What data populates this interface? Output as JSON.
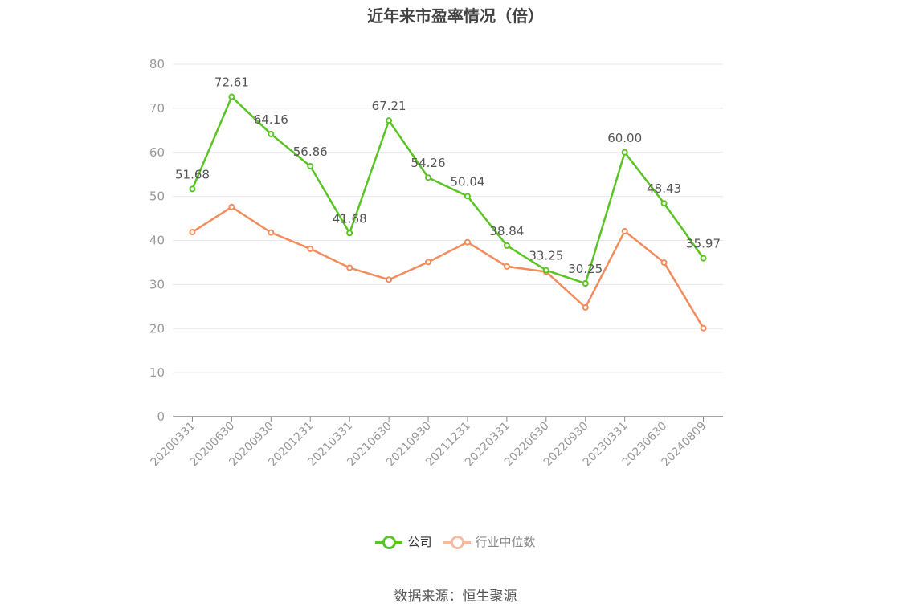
{
  "chart_data": {
    "type": "line",
    "title": "近年来市盈率情况（倍）",
    "categories": [
      "20200331",
      "20200630",
      "20200930",
      "20201231",
      "20210331",
      "20210630",
      "20210930",
      "20211231",
      "20220331",
      "20220630",
      "20220930",
      "20230331",
      "20230630",
      "20240809"
    ],
    "series": [
      {
        "name": "公司",
        "color": "#5ac424",
        "values": [
          51.68,
          72.61,
          64.16,
          56.86,
          41.68,
          67.21,
          54.26,
          50.04,
          38.84,
          33.25,
          30.25,
          60.0,
          48.43,
          35.97
        ],
        "labels": [
          "51.68",
          "72.61",
          "64.16",
          "56.86",
          "41.68",
          "67.21",
          "54.26",
          "50.04",
          "38.84",
          "33.25",
          "30.25",
          "60.00",
          "48.43",
          "35.97"
        ]
      },
      {
        "name": "行业中位数",
        "color": "#f28c5c",
        "legend_color": "#f7b9a0",
        "values": [
          41.9,
          47.6,
          41.8,
          38.1,
          33.8,
          31.1,
          35.1,
          39.6,
          34.1,
          32.9,
          24.8,
          42.1,
          35.0,
          20.1
        ]
      }
    ],
    "ylim": [
      0,
      80
    ],
    "yticks": [
      0,
      10,
      20,
      30,
      40,
      50,
      60,
      70,
      80
    ],
    "grid": true,
    "legend_position": "bottom-center",
    "source": "数据来源：恒生聚源"
  }
}
